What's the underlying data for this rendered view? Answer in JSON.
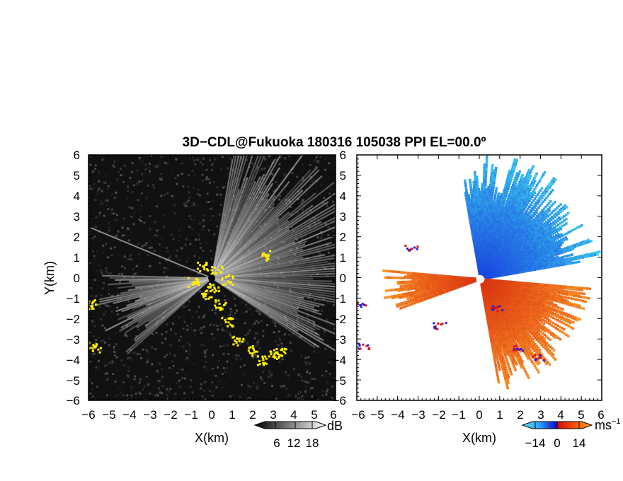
{
  "title": "3D−CDL@Fukuoka 180316 105038 PPI EL=00.0º",
  "colors": {
    "highlight": "#ffee00",
    "axis": "#000000"
  },
  "chart_data": [
    {
      "type": "heatmap",
      "name": "intensity-panel",
      "xlabel": "X(km)",
      "ylabel": "Y(km)",
      "xlim": [
        -6,
        6
      ],
      "ylim": [
        -6,
        6
      ],
      "x_ticks": [
        "−6",
        "−5",
        "−4",
        "−3",
        "−2",
        "−1",
        "0",
        "1",
        "2",
        "3",
        "4",
        "5",
        "6"
      ],
      "y_ticks": [
        "6",
        "5",
        "4",
        "3",
        "2",
        "1",
        "0",
        "−1",
        "−2",
        "−3",
        "−4",
        "−5",
        "−6"
      ],
      "colorbar": {
        "unit": "dB",
        "tick_labels": [
          "6",
          "12",
          "18"
        ],
        "range": [
          0,
          24
        ]
      }
    },
    {
      "type": "heatmap",
      "name": "velocity-panel",
      "xlabel": "X(km)",
      "xlim": [
        -6,
        6
      ],
      "ylim": [
        -6,
        6
      ],
      "x_ticks": [
        "−6",
        "−5",
        "−4",
        "−3",
        "−2",
        "−1",
        "0",
        "1",
        "2",
        "3",
        "4",
        "5",
        "6"
      ],
      "y_ticks": [
        "6",
        "5",
        "4",
        "3",
        "2",
        "1",
        "0",
        "−1",
        "−2",
        "−3",
        "−4",
        "−5",
        "−6"
      ],
      "colorbar": {
        "unit": "ms",
        "unit_exp": "−1",
        "tick_labels": [
          "−14",
          "0",
          "14"
        ],
        "range": [
          -21,
          21
        ]
      }
    }
  ]
}
